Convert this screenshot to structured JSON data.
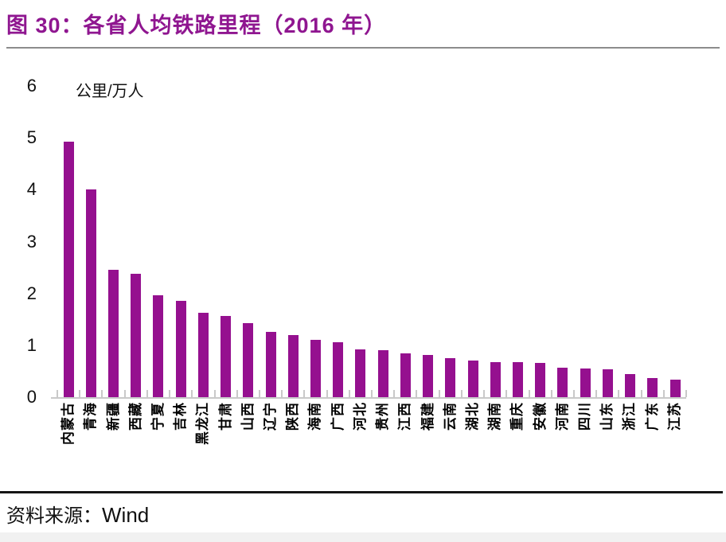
{
  "figure": {
    "title": "图 30：各省人均铁路里程（2016 年）",
    "title_color": "#8F1690",
    "source_label": "资料来源：",
    "source_value": "Wind"
  },
  "chart_data": {
    "type": "bar",
    "title": "各省人均铁路里程（2016 年）",
    "unit_label": "公里/万人",
    "xlabel": "",
    "ylabel": "公里/万人",
    "categories": [
      "内蒙古",
      "青海",
      "新疆",
      "西藏",
      "宁夏",
      "吉林",
      "黑龙江",
      "甘肃",
      "山西",
      "辽宁",
      "陕西",
      "海南",
      "广西",
      "河北",
      "贵州",
      "江西",
      "福建",
      "云南",
      "湖北",
      "湖南",
      "重庆",
      "安徽",
      "河南",
      "四川",
      "山东",
      "浙江",
      "广东",
      "江苏"
    ],
    "values": [
      4.92,
      4.0,
      2.46,
      2.38,
      1.96,
      1.85,
      1.63,
      1.57,
      1.43,
      1.26,
      1.2,
      1.11,
      1.06,
      0.92,
      0.9,
      0.85,
      0.81,
      0.75,
      0.7,
      0.67,
      0.67,
      0.66,
      0.57,
      0.55,
      0.53,
      0.44,
      0.37,
      0.34
    ],
    "ylim": [
      0,
      6
    ],
    "yticks": [
      0,
      1,
      2,
      3,
      4,
      5,
      6
    ],
    "grid": false,
    "legend": false,
    "bar_color": "#95108F",
    "axis_color": "#C9C9C9"
  }
}
